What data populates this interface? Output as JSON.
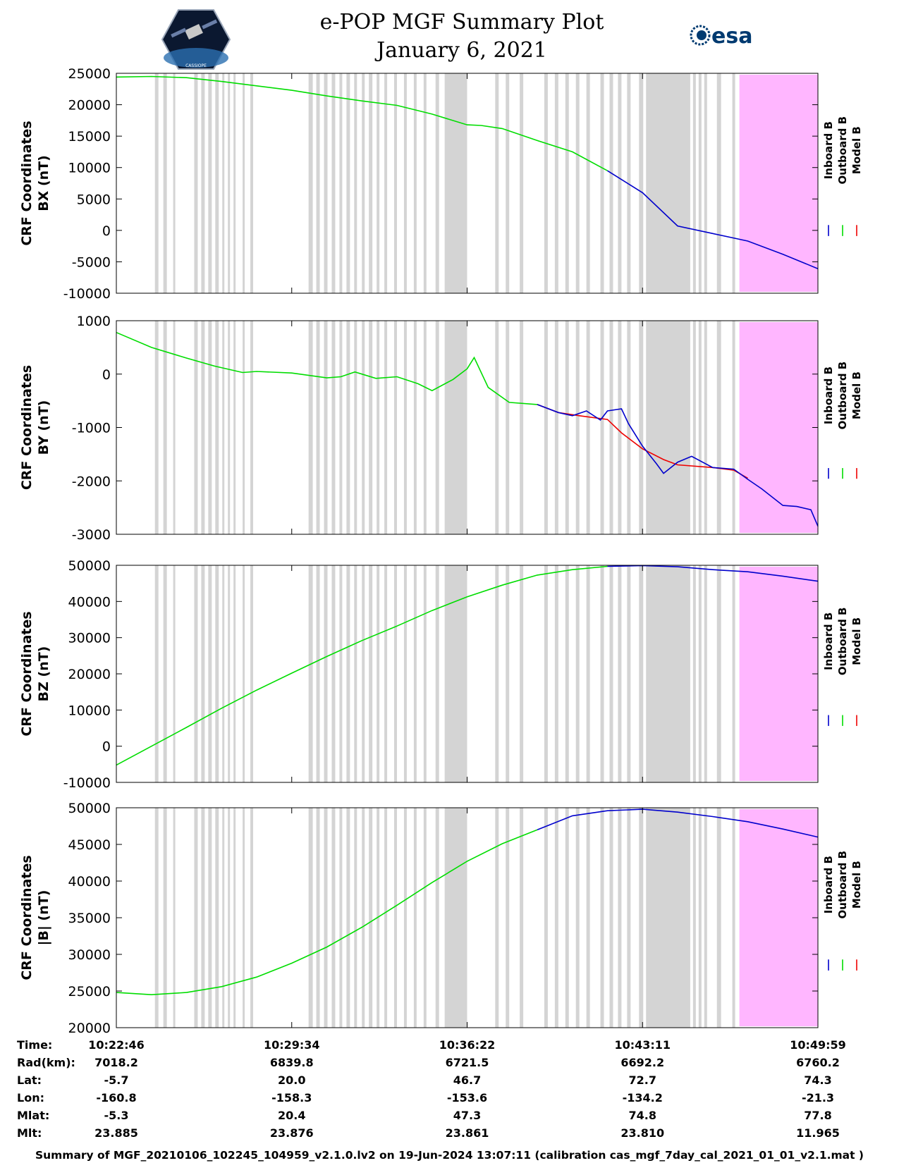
{
  "header": {
    "title_line1": "e-POP MGF Summary Plot",
    "title_line2": "January 6, 2021",
    "logo_right_text": "esa",
    "logo_left_text": "CASSIOPE"
  },
  "legend_labels": [
    "Inboard B",
    "Outboard B",
    "Model B"
  ],
  "colors": {
    "inboard": "#0000cc",
    "outboard": "#00dd00",
    "model": "#ee0000",
    "gap_band": "#d4d4d4",
    "shaded_region": "#ffb6ff"
  },
  "chart_data": [
    {
      "type": "line",
      "ylabel_line1": "CRF Coordinates",
      "ylabel_line2": "BX (nT)",
      "ylim": [
        -10000,
        25000
      ],
      "yticks": [
        25000,
        20000,
        15000,
        10000,
        5000,
        0,
        -5000,
        -10000
      ],
      "series": [
        {
          "name": "Outboard B",
          "x": [
            0,
            0.05,
            0.1,
            0.15,
            0.2,
            0.25,
            0.3,
            0.35,
            0.4,
            0.45,
            0.5,
            0.52,
            0.55,
            0.6,
            0.65,
            0.7
          ],
          "values": [
            24400,
            24500,
            24300,
            23700,
            23000,
            22300,
            21400,
            20600,
            19900,
            18500,
            16800,
            16700,
            16200,
            14300,
            12500,
            9500
          ]
        },
        {
          "name": "Inboard B",
          "x": [
            0.7,
            0.75,
            0.8,
            0.85,
            0.9,
            0.95,
            1.0
          ],
          "values": [
            9500,
            6000,
            700,
            -500,
            -1700,
            -3800,
            -6100
          ]
        }
      ]
    },
    {
      "type": "line",
      "ylabel_line1": "CRF Coordinates",
      "ylabel_line2": "BY (nT)",
      "ylim": [
        -3000,
        1000
      ],
      "yticks": [
        1000,
        0,
        -1000,
        -2000,
        -3000
      ],
      "series": [
        {
          "name": "Outboard B",
          "x": [
            0,
            0.05,
            0.1,
            0.14,
            0.18,
            0.2,
            0.25,
            0.3,
            0.32,
            0.34,
            0.37,
            0.4,
            0.43,
            0.45,
            0.48,
            0.5,
            0.51,
            0.53,
            0.56,
            0.6
          ],
          "values": [
            780,
            500,
            300,
            150,
            30,
            50,
            20,
            -70,
            -50,
            40,
            -80,
            -50,
            -180,
            -310,
            -100,
            100,
            310,
            -250,
            -530,
            -570
          ]
        },
        {
          "name": "Model B",
          "x": [
            0.6,
            0.63,
            0.66,
            0.7,
            0.72,
            0.75,
            0.78,
            0.8,
            0.85,
            0.88,
            0.9
          ],
          "values": [
            -570,
            -720,
            -780,
            -850,
            -1100,
            -1400,
            -1600,
            -1700,
            -1750,
            -1800,
            -1950
          ]
        },
        {
          "name": "Inboard B",
          "x": [
            0.6,
            0.63,
            0.65,
            0.67,
            0.69,
            0.7,
            0.72,
            0.73,
            0.75,
            0.77,
            0.78,
            0.8,
            0.82,
            0.85,
            0.88,
            0.9,
            0.92,
            0.95,
            0.97,
            0.99,
            1.0
          ],
          "values": [
            -570,
            -720,
            -780,
            -690,
            -860,
            -690,
            -650,
            -930,
            -1350,
            -1680,
            -1860,
            -1650,
            -1540,
            -1750,
            -1780,
            -1970,
            -2150,
            -2460,
            -2480,
            -2540,
            -2850
          ]
        }
      ]
    },
    {
      "type": "line",
      "ylabel_line1": "CRF Coordinates",
      "ylabel_line2": "BZ (nT)",
      "ylim": [
        -10000,
        50000
      ],
      "yticks": [
        50000,
        40000,
        30000,
        20000,
        10000,
        0,
        -10000
      ],
      "series": [
        {
          "name": "Outboard B",
          "x": [
            0,
            0.05,
            0.1,
            0.15,
            0.2,
            0.25,
            0.3,
            0.35,
            0.4,
            0.45,
            0.5,
            0.55,
            0.6,
            0.65,
            0.7
          ],
          "values": [
            -5200,
            0,
            5200,
            10500,
            15500,
            20200,
            24800,
            29200,
            33200,
            37500,
            41300,
            44500,
            47300,
            48800,
            49700
          ]
        },
        {
          "name": "Inboard B",
          "x": [
            0.7,
            0.75,
            0.8,
            0.85,
            0.9,
            0.95,
            1.0
          ],
          "values": [
            49700,
            49900,
            49600,
            48800,
            48200,
            47000,
            45600
          ]
        }
      ]
    },
    {
      "type": "line",
      "ylabel_line1": "CRF Coordinates",
      "ylabel_line2": "|B| (nT)",
      "ylim": [
        20000,
        50000
      ],
      "yticks": [
        50000,
        45000,
        40000,
        35000,
        30000,
        25000,
        20000
      ],
      "series": [
        {
          "name": "Outboard B",
          "x": [
            0,
            0.05,
            0.1,
            0.15,
            0.2,
            0.25,
            0.3,
            0.35,
            0.4,
            0.45,
            0.5,
            0.55,
            0.6
          ],
          "values": [
            24800,
            24500,
            24800,
            25600,
            26900,
            28800,
            31000,
            33700,
            36700,
            39800,
            42700,
            45100,
            47000
          ]
        },
        {
          "name": "Inboard B",
          "x": [
            0.6,
            0.65,
            0.7,
            0.75,
            0.8,
            0.85,
            0.9,
            0.95,
            1.0
          ],
          "values": [
            47000,
            48900,
            49600,
            49800,
            49400,
            48800,
            48100,
            47100,
            46000
          ]
        }
      ]
    }
  ],
  "gap_intervals": [
    [
      0.055,
      0.06
    ],
    [
      0.067,
      0.072
    ],
    [
      0.081,
      0.084
    ],
    [
      0.111,
      0.116
    ],
    [
      0.121,
      0.126
    ],
    [
      0.131,
      0.136
    ],
    [
      0.141,
      0.146
    ],
    [
      0.151,
      0.154
    ],
    [
      0.159,
      0.162
    ],
    [
      0.167,
      0.17
    ],
    [
      0.18,
      0.183
    ],
    [
      0.191,
      0.195
    ],
    [
      0.274,
      0.28
    ],
    [
      0.285,
      0.29
    ],
    [
      0.296,
      0.301
    ],
    [
      0.307,
      0.312
    ],
    [
      0.318,
      0.322
    ],
    [
      0.328,
      0.333
    ],
    [
      0.339,
      0.343
    ],
    [
      0.35,
      0.354
    ],
    [
      0.36,
      0.365
    ],
    [
      0.371,
      0.375
    ],
    [
      0.382,
      0.386
    ],
    [
      0.396,
      0.4
    ],
    [
      0.41,
      0.414
    ],
    [
      0.424,
      0.428
    ],
    [
      0.438,
      0.442
    ],
    [
      0.455,
      0.46
    ],
    [
      0.468,
      0.5
    ],
    [
      0.54,
      0.545
    ],
    [
      0.555,
      0.56
    ],
    [
      0.575,
      0.58
    ],
    [
      0.61,
      0.615
    ],
    [
      0.625,
      0.63
    ],
    [
      0.64,
      0.645
    ],
    [
      0.655,
      0.66
    ],
    [
      0.67,
      0.675
    ],
    [
      0.69,
      0.695
    ],
    [
      0.703,
      0.708
    ],
    [
      0.715,
      0.72
    ],
    [
      0.728,
      0.733
    ],
    [
      0.745,
      0.751
    ],
    [
      0.755,
      0.818
    ],
    [
      0.822,
      0.826
    ],
    [
      0.83,
      0.834
    ],
    [
      0.838,
      0.842
    ],
    [
      0.856,
      0.862
    ],
    [
      0.878,
      0.882
    ]
  ],
  "shaded_region": [
    0.88,
    1.0
  ],
  "orbit_table": {
    "row_labels": [
      "Time:",
      "Rad(km):",
      "Lat:",
      "Lon:",
      "Mlat:",
      "Mlt:"
    ],
    "columns": [
      {
        "tick": 0.0,
        "values": [
          "10:22:46",
          "7018.2",
          "-5.7",
          "-160.8",
          "-5.3",
          "23.885"
        ]
      },
      {
        "tick": 0.25,
        "values": [
          "10:29:34",
          "6839.8",
          "20.0",
          "-158.3",
          "20.4",
          "23.876"
        ]
      },
      {
        "tick": 0.5,
        "values": [
          "10:36:22",
          "6721.5",
          "46.7",
          "-153.6",
          "47.3",
          "23.861"
        ]
      },
      {
        "tick": 0.75,
        "values": [
          "10:43:11",
          "6692.2",
          "72.7",
          "-134.2",
          "74.8",
          "23.810"
        ]
      },
      {
        "tick": 1.0,
        "values": [
          "10:49:59",
          "6760.2",
          "74.3",
          "-21.3",
          "77.8",
          "11.965"
        ]
      }
    ]
  },
  "footer": "Summary of MGF_20210106_102245_104959_v2.1.0.lv2 on 19-Jun-2024 13:07:11 (calibration cas_mgf_7day_cal_2021_01_01_v2.1.mat )"
}
